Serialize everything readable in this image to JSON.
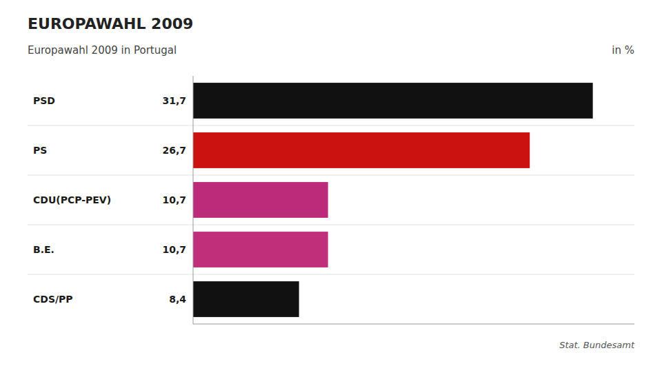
{
  "chart_data": {
    "type": "bar",
    "orientation": "horizontal",
    "title": "EUROPAWAHL 2009",
    "subtitle": "Europawahl 2009 in Portugal",
    "xlabel": "in %",
    "annotations": [
      "Stat. Bundesamt"
    ],
    "categories": [
      "PSD",
      "PS",
      "CDU(PCP-PEV)",
      "B.E.",
      "CDS/PP"
    ],
    "values": [
      31.7,
      26.7,
      10.7,
      10.7,
      8.4
    ],
    "value_labels": [
      "31,7",
      "26,7",
      "10,7",
      "10,7",
      "8,4"
    ],
    "colors": [
      "#111111",
      "#cc1111",
      "#bc2a7a",
      "#c0307a",
      "#111111"
    ],
    "xlim": [
      0,
      35
    ],
    "data_labels": true,
    "tick_labels": false,
    "grid": false
  }
}
